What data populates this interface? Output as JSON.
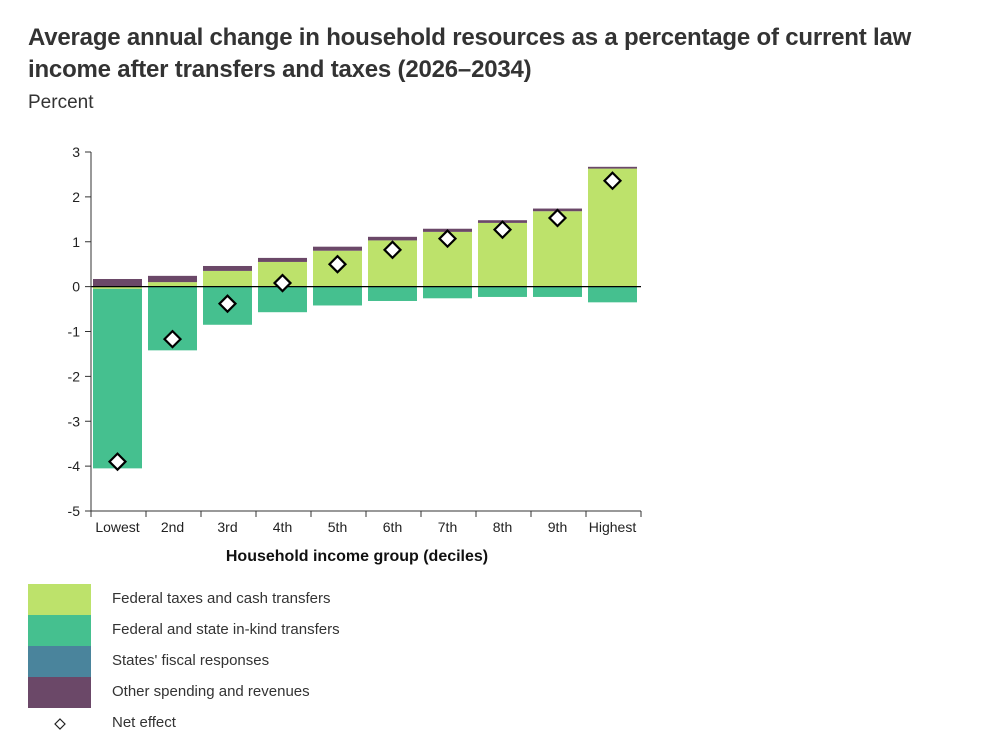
{
  "title": "Average annual change in household resources as a percentage of current law income after transfers and taxes (2026–2034)",
  "subtitle": "Percent",
  "colors": {
    "federal_taxes": "#bde26b",
    "in_kind": "#45c08f",
    "states": "#4a849c",
    "other": "#6b4868",
    "marker_fill": "#ffffff",
    "marker_stroke": "#000000"
  },
  "chart_data": {
    "type": "bar",
    "stacked": true,
    "title": "Average annual change in household resources as a percentage of current law income after transfers and taxes (2026–2034)",
    "ylabel": "Percent",
    "xlabel": "Household income group (deciles)",
    "ylim": [
      -5,
      3
    ],
    "yticks": [
      3,
      2,
      1,
      0,
      -1,
      -2,
      -3,
      -4,
      -5
    ],
    "categories": [
      "Lowest",
      "2nd",
      "3rd",
      "4th",
      "5th",
      "6th",
      "7th",
      "8th",
      "9th",
      "Highest"
    ],
    "series": [
      {
        "name": "Federal taxes and cash transfers",
        "color_key": "federal_taxes",
        "values": [
          -0.05,
          0.1,
          0.35,
          0.55,
          0.8,
          1.03,
          1.22,
          1.42,
          1.68,
          2.63
        ]
      },
      {
        "name": "Federal and state in-kind transfers",
        "color_key": "in_kind",
        "values": [
          -4.0,
          -1.42,
          -0.85,
          -0.57,
          -0.42,
          -0.32,
          -0.26,
          -0.23,
          -0.23,
          -0.35
        ]
      },
      {
        "name": "States' fiscal responses",
        "color_key": "states",
        "values": [
          0,
          0,
          0,
          0,
          0,
          0,
          0,
          0,
          0,
          0
        ]
      },
      {
        "name": "Other spending and revenues",
        "color_key": "other",
        "values": [
          0.17,
          0.14,
          0.11,
          0.09,
          0.09,
          0.08,
          0.07,
          0.06,
          0.06,
          0.04
        ]
      }
    ],
    "net_effect": {
      "name": "Net effect",
      "values": [
        -3.9,
        -1.17,
        -0.38,
        0.08,
        0.5,
        0.82,
        1.07,
        1.27,
        1.53,
        2.36
      ]
    }
  }
}
